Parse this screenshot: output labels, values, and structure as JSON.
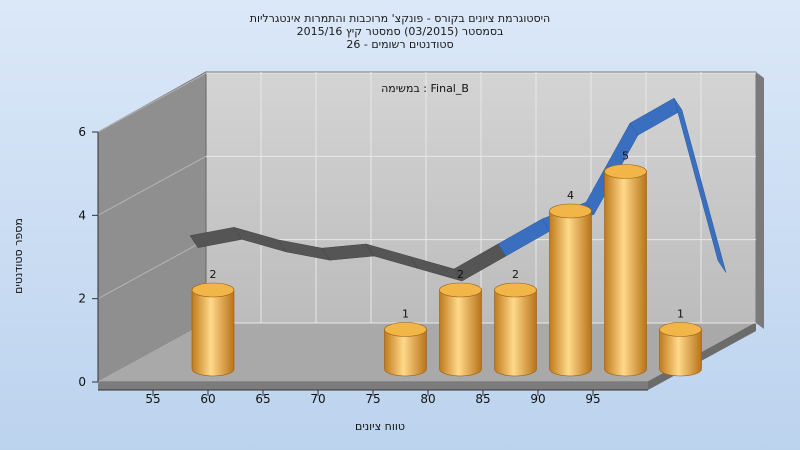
{
  "chart_data": {
    "type": "bar",
    "title_lines": [
      "היסטוגרמת ציונים בקורס - פונקצ' מרוכבות והתמרות אינטגרליות",
      "בסמסטר  (03/2015)  סמסטר קיץ  2015/16",
      "סטודנטים רשומים - 26"
    ],
    "annotation": "במשימה : Final_B",
    "xlabel": "טווח ציונים",
    "ylabel": "מספר סטודנטים",
    "ylim": [
      0,
      6
    ],
    "y_ticks": [
      0,
      2,
      4,
      6
    ],
    "x_ticks": [
      55,
      60,
      65,
      70,
      75,
      80,
      85,
      90,
      95
    ],
    "x_range": [
      50,
      100
    ],
    "bars": [
      {
        "x": 55,
        "value": 2
      },
      {
        "x": 72.5,
        "value": 1
      },
      {
        "x": 77.5,
        "value": 2
      },
      {
        "x": 82.5,
        "value": 2
      },
      {
        "x": 87.5,
        "value": 4
      },
      {
        "x": 92.5,
        "value": 5
      },
      {
        "x": 97.5,
        "value": 1
      }
    ],
    "curve": {
      "x": [
        52,
        56,
        60,
        64,
        68,
        72,
        76,
        80,
        84,
        88,
        92,
        96,
        100
      ],
      "y": [
        2.6,
        2.8,
        2.5,
        2.3,
        2.4,
        2.1,
        1.8,
        2.4,
        3.0,
        3.4,
        5.3,
        5.9,
        2.0
      ]
    },
    "grid": true,
    "colors": {
      "bar_light": "#ffd98a",
      "bar_mid": "#f0b24a",
      "bar_dark": "#c07a1c",
      "curve_front": "#3a6fbf",
      "curve_back": "#555555",
      "wall": "#c8c8c8",
      "side_wall": "#8f8f8f",
      "floor": "#a9a9a9"
    }
  }
}
